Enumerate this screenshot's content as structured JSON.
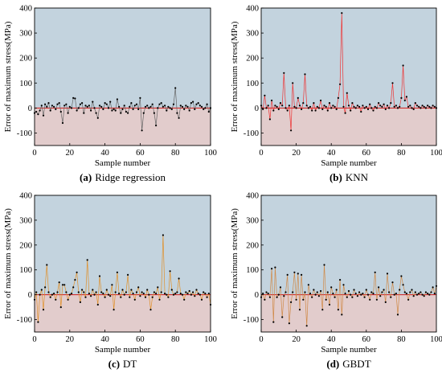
{
  "figure": {
    "background": "#ffffff"
  },
  "style": {
    "bg_above": "#c3d3de",
    "bg_below": "#e2cccc",
    "zero_line": "#d01818",
    "marker": "#000000",
    "axis": "#000000",
    "line_colors": [
      "#666666",
      "#ee3333",
      "#e0902a",
      "#d08a48"
    ]
  },
  "chart_data": [
    {
      "type": "line",
      "caption_letter": "(a)",
      "caption_text": "Ridge regression",
      "xlabel": "Sample number",
      "ylabel": "Error of maximum stress(MPa)",
      "xlim": [
        0,
        100
      ],
      "ylim": [
        -150,
        400
      ],
      "xticks": [
        0,
        20,
        40,
        60,
        80,
        100
      ],
      "yticks": [
        -100,
        0,
        100,
        200,
        300,
        400
      ],
      "grid": false,
      "x": [
        0,
        1,
        2,
        3,
        4,
        5,
        6,
        7,
        8,
        9,
        10,
        11,
        12,
        13,
        14,
        15,
        16,
        17,
        18,
        19,
        20,
        21,
        22,
        23,
        24,
        25,
        26,
        27,
        28,
        29,
        30,
        31,
        32,
        33,
        34,
        35,
        36,
        37,
        38,
        39,
        40,
        41,
        42,
        43,
        44,
        45,
        46,
        47,
        48,
        49,
        50,
        51,
        52,
        53,
        54,
        55,
        56,
        57,
        58,
        59,
        60,
        61,
        62,
        63,
        64,
        65,
        66,
        67,
        68,
        69,
        70,
        71,
        72,
        73,
        74,
        75,
        76,
        77,
        78,
        79,
        80,
        81,
        82,
        83,
        84,
        85,
        86,
        87,
        88,
        89,
        90,
        91,
        92,
        93,
        94,
        95,
        96,
        97,
        98,
        99,
        100
      ],
      "y": [
        -20,
        -15,
        -25,
        -10,
        10,
        -30,
        15,
        5,
        20,
        -10,
        10,
        5,
        -5,
        15,
        20,
        -15,
        -60,
        10,
        15,
        -20,
        5,
        0,
        40,
        38,
        -10,
        0,
        15,
        20,
        -20,
        10,
        5,
        10,
        -10,
        25,
        0,
        -20,
        -40,
        10,
        5,
        -5,
        20,
        15,
        0,
        25,
        -10,
        -5,
        -10,
        35,
        5,
        -20,
        -5,
        10,
        -15,
        -20,
        5,
        20,
        -5,
        10,
        15,
        -5,
        40,
        -90,
        -20,
        5,
        10,
        0,
        5,
        15,
        -20,
        -70,
        0,
        15,
        20,
        5,
        10,
        -10,
        5,
        0,
        -5,
        15,
        80,
        -20,
        -40,
        10,
        5,
        -5,
        10,
        5,
        -10,
        20,
        25,
        -5,
        15,
        20,
        10,
        5,
        -5,
        0,
        15,
        -15,
        0
      ]
    },
    {
      "type": "line",
      "caption_letter": "(b)",
      "caption_text": "KNN",
      "xlabel": "Sample number",
      "ylabel": "Error of maximum stress(MPa)",
      "xlim": [
        0,
        100
      ],
      "ylim": [
        -150,
        400
      ],
      "xticks": [
        0,
        20,
        40,
        60,
        80,
        100
      ],
      "yticks": [
        -100,
        0,
        100,
        200,
        300,
        400
      ],
      "grid": false,
      "x": [
        0,
        1,
        2,
        3,
        4,
        5,
        6,
        7,
        8,
        9,
        10,
        11,
        12,
        13,
        14,
        15,
        16,
        17,
        18,
        19,
        20,
        21,
        22,
        23,
        24,
        25,
        26,
        27,
        28,
        29,
        30,
        31,
        32,
        33,
        34,
        35,
        36,
        37,
        38,
        39,
        40,
        41,
        42,
        43,
        44,
        45,
        46,
        47,
        48,
        49,
        50,
        51,
        52,
        53,
        54,
        55,
        56,
        57,
        58,
        59,
        60,
        61,
        62,
        63,
        64,
        65,
        66,
        67,
        68,
        69,
        70,
        71,
        72,
        73,
        74,
        75,
        76,
        77,
        78,
        79,
        80,
        81,
        82,
        83,
        84,
        85,
        86,
        87,
        88,
        89,
        90,
        91,
        92,
        93,
        94,
        95,
        96,
        97,
        98,
        99,
        100
      ],
      "y": [
        10,
        -5,
        50,
        0,
        10,
        -45,
        30,
        -10,
        10,
        5,
        -5,
        20,
        10,
        140,
        0,
        -10,
        10,
        -90,
        100,
        5,
        0,
        40,
        10,
        -5,
        20,
        135,
        10,
        0,
        5,
        -10,
        20,
        -10,
        5,
        0,
        30,
        -5,
        10,
        5,
        -10,
        20,
        0,
        10,
        5,
        -5,
        40,
        95,
        380,
        5,
        -20,
        60,
        10,
        -10,
        20,
        5,
        0,
        10,
        5,
        -15,
        10,
        0,
        5,
        -5,
        15,
        0,
        -10,
        5,
        0,
        20,
        10,
        5,
        15,
        -5,
        10,
        0,
        20,
        100,
        5,
        10,
        0,
        5,
        40,
        170,
        30,
        45,
        5,
        10,
        0,
        -5,
        20,
        10,
        5,
        0,
        10,
        5,
        0,
        10,
        5,
        0,
        10,
        5,
        0
      ]
    },
    {
      "type": "line",
      "caption_letter": "(c)",
      "caption_text": "DT",
      "xlabel": "Sample number",
      "ylabel": "Error of maximum stress(MPa)",
      "xlim": [
        0,
        100
      ],
      "ylim": [
        -150,
        400
      ],
      "xticks": [
        0,
        20,
        40,
        60,
        80,
        100
      ],
      "yticks": [
        -100,
        0,
        100,
        200,
        300,
        400
      ],
      "grid": false,
      "x": [
        0,
        1,
        2,
        3,
        4,
        5,
        6,
        7,
        8,
        9,
        10,
        11,
        12,
        13,
        14,
        15,
        16,
        17,
        18,
        19,
        20,
        21,
        22,
        23,
        24,
        25,
        26,
        27,
        28,
        29,
        30,
        31,
        32,
        33,
        34,
        35,
        36,
        37,
        38,
        39,
        40,
        41,
        42,
        43,
        44,
        45,
        46,
        47,
        48,
        49,
        50,
        51,
        52,
        53,
        54,
        55,
        56,
        57,
        58,
        59,
        60,
        61,
        62,
        63,
        64,
        65,
        66,
        67,
        68,
        69,
        70,
        71,
        72,
        73,
        74,
        75,
        76,
        77,
        78,
        79,
        80,
        81,
        82,
        83,
        84,
        85,
        86,
        87,
        88,
        89,
        90,
        91,
        92,
        93,
        94,
        95,
        96,
        97,
        98,
        99,
        100
      ],
      "y": [
        -20,
        10,
        -110,
        0,
        20,
        -60,
        30,
        120,
        10,
        -10,
        0,
        5,
        -20,
        10,
        50,
        -50,
        40,
        40,
        10,
        -20,
        0,
        5,
        30,
        60,
        90,
        10,
        -30,
        20,
        10,
        -10,
        140,
        5,
        -5,
        20,
        0,
        10,
        -40,
        75,
        10,
        5,
        -10,
        20,
        0,
        -5,
        40,
        -60,
        10,
        90,
        5,
        -10,
        20,
        0,
        10,
        80,
        -10,
        20,
        5,
        -20,
        10,
        30,
        -5,
        10,
        5,
        -10,
        20,
        0,
        -60,
        -10,
        10,
        5,
        30,
        -20,
        10,
        240,
        5,
        0,
        -10,
        95,
        20,
        0,
        5,
        10,
        65,
        5,
        0,
        -20,
        10,
        5,
        15,
        0,
        10,
        -5,
        20,
        5,
        0,
        -20,
        10,
        5,
        -10,
        5,
        -40
      ]
    },
    {
      "type": "line",
      "caption_letter": "(d)",
      "caption_text": "GBDT",
      "xlabel": "Sample number",
      "ylabel": "Error of maximum stress(MPa)",
      "xlim": [
        0,
        100
      ],
      "ylim": [
        -150,
        400
      ],
      "xticks": [
        0,
        20,
        40,
        60,
        80,
        100
      ],
      "yticks": [
        -100,
        0,
        100,
        200,
        300,
        400
      ],
      "grid": false,
      "x": [
        0,
        1,
        2,
        3,
        4,
        5,
        6,
        7,
        8,
        9,
        10,
        11,
        12,
        13,
        14,
        15,
        16,
        17,
        18,
        19,
        20,
        21,
        22,
        23,
        24,
        25,
        26,
        27,
        28,
        29,
        30,
        31,
        32,
        33,
        34,
        35,
        36,
        37,
        38,
        39,
        40,
        41,
        42,
        43,
        44,
        45,
        46,
        47,
        48,
        49,
        50,
        51,
        52,
        53,
        54,
        55,
        56,
        57,
        58,
        59,
        60,
        61,
        62,
        63,
        64,
        65,
        66,
        67,
        68,
        69,
        70,
        71,
        72,
        73,
        74,
        75,
        76,
        77,
        78,
        79,
        80,
        81,
        82,
        83,
        84,
        85,
        86,
        87,
        88,
        89,
        90,
        91,
        92,
        93,
        94,
        95,
        96,
        97,
        98,
        99,
        100
      ],
      "y": [
        -10,
        5,
        -20,
        10,
        5,
        -10,
        105,
        -110,
        110,
        -10,
        0,
        30,
        -90,
        -5,
        10,
        80,
        -115,
        -30,
        10,
        90,
        -20,
        85,
        -60,
        80,
        -20,
        10,
        -125,
        40,
        5,
        -10,
        20,
        0,
        10,
        -5,
        15,
        -60,
        120,
        -20,
        10,
        -40,
        30,
        5,
        -10,
        20,
        -60,
        60,
        -80,
        40,
        5,
        -10,
        15,
        0,
        -10,
        20,
        5,
        -5,
        10,
        0,
        5,
        -10,
        20,
        0,
        -20,
        10,
        5,
        90,
        -20,
        30,
        -5,
        10,
        20,
        -30,
        85,
        10,
        -10,
        50,
        0,
        5,
        -80,
        20,
        75,
        40,
        10,
        5,
        -20,
        10,
        20,
        -5,
        10,
        0,
        5,
        10,
        0,
        -5,
        10,
        5,
        0,
        10,
        30,
        5,
        35
      ]
    }
  ]
}
